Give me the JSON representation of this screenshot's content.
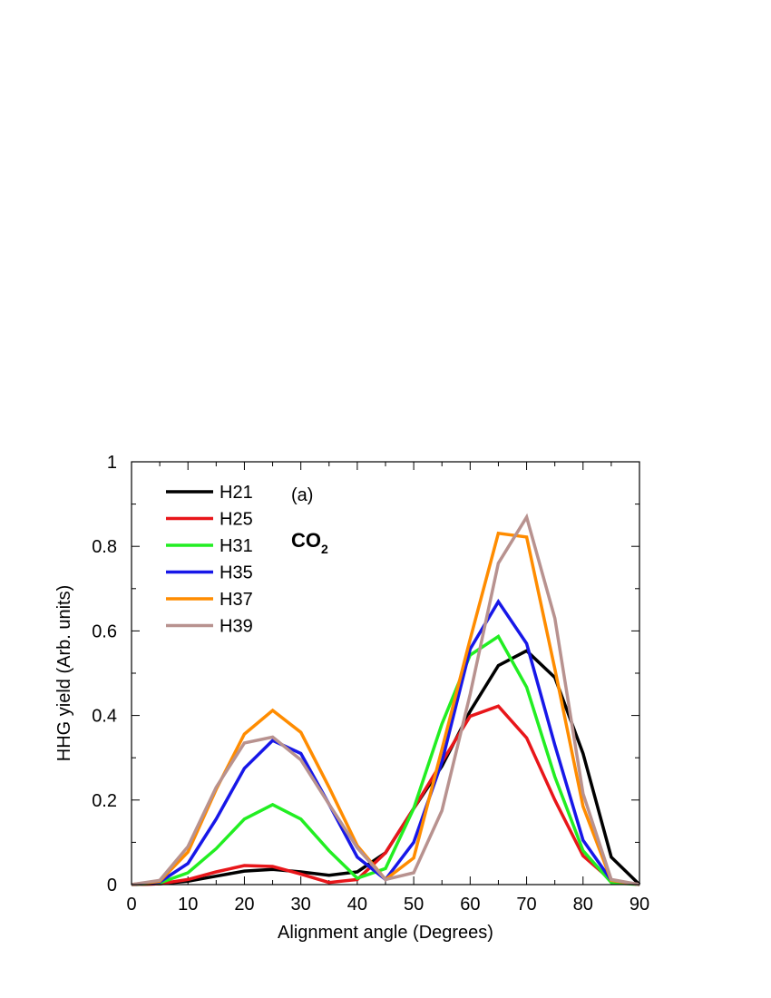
{
  "chart_data": {
    "type": "line",
    "title": "",
    "xlabel": "Alignment angle (Degrees)",
    "ylabel": "HHG yield (Arb. units)",
    "xlim": [
      0,
      90
    ],
    "ylim": [
      0,
      1
    ],
    "xticks": [
      0,
      10,
      20,
      30,
      40,
      50,
      60,
      70,
      80,
      90
    ],
    "yticks": [
      0,
      0.2,
      0.4,
      0.6,
      0.8,
      1
    ],
    "ytick_labels": [
      "0",
      "0.2",
      "0.4",
      "0.6",
      "0.8",
      "1"
    ],
    "grid": false,
    "legend_position": "top-left",
    "annotations": {
      "panel_label": "(a)",
      "molecule": "CO",
      "molecule_subscript": "2"
    },
    "x": [
      0,
      5,
      10,
      15,
      20,
      25,
      30,
      35,
      40,
      45,
      50,
      55,
      60,
      65,
      70,
      75,
      80,
      85,
      90
    ],
    "series": [
      {
        "name": "H21",
        "color": "#000000",
        "values": [
          0,
          0.002,
          0.008,
          0.02,
          0.032,
          0.036,
          0.03,
          0.022,
          0.03,
          0.075,
          0.18,
          0.28,
          0.41,
          0.518,
          0.553,
          0.49,
          0.31,
          0.065,
          0
        ]
      },
      {
        "name": "H25",
        "color": "#e8161a",
        "values": [
          0,
          0.002,
          0.012,
          0.03,
          0.045,
          0.043,
          0.025,
          0.005,
          0.012,
          0.075,
          0.18,
          0.29,
          0.398,
          0.422,
          0.347,
          0.2,
          0.068,
          0.01,
          0
        ]
      },
      {
        "name": "H31",
        "color": "#22ee22",
        "values": [
          0,
          0.004,
          0.028,
          0.085,
          0.155,
          0.189,
          0.155,
          0.08,
          0.015,
          0.038,
          0.18,
          0.38,
          0.543,
          0.587,
          0.467,
          0.255,
          0.08,
          0.005,
          0
        ]
      },
      {
        "name": "H35",
        "color": "#1717e8",
        "values": [
          0,
          0.006,
          0.05,
          0.155,
          0.275,
          0.341,
          0.31,
          0.19,
          0.065,
          0.012,
          0.1,
          0.29,
          0.557,
          0.669,
          0.57,
          0.33,
          0.105,
          0.01,
          0
        ]
      },
      {
        "name": "H37",
        "color": "#ff8c00",
        "values": [
          0,
          0.008,
          0.077,
          0.225,
          0.356,
          0.412,
          0.36,
          0.23,
          0.092,
          0.012,
          0.063,
          0.32,
          0.58,
          0.831,
          0.822,
          0.51,
          0.185,
          0.01,
          0
        ]
      },
      {
        "name": "H39",
        "color": "#b8928f",
        "values": [
          0,
          0.01,
          0.09,
          0.23,
          0.335,
          0.349,
          0.295,
          0.19,
          0.087,
          0.012,
          0.028,
          0.175,
          0.45,
          0.76,
          0.869,
          0.63,
          0.215,
          0.012,
          0
        ]
      }
    ]
  }
}
